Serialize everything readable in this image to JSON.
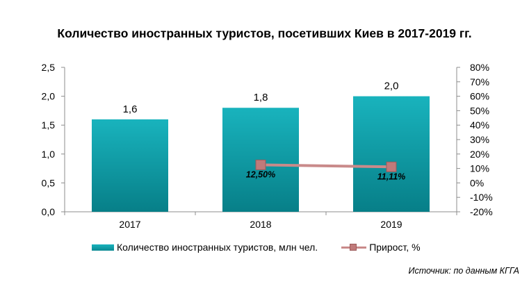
{
  "chart_data": {
    "type": "bar",
    "title": "Количество иностранных туристов, посетивших Киев в 2017-2019 гг.",
    "categories": [
      "2017",
      "2018",
      "2019"
    ],
    "series": [
      {
        "name": "Количество иностранных туристов, млн чел.",
        "type": "bar",
        "axis": "left",
        "values": [
          1.6,
          1.8,
          2.0
        ],
        "labels": [
          "1,6",
          "1,8",
          "2,0"
        ],
        "color": "#12a3ad"
      },
      {
        "name": "Прирост, %",
        "type": "line",
        "axis": "right",
        "values": [
          null,
          12.5,
          11.11
        ],
        "labels": [
          "",
          "12,50%",
          "11,11%"
        ],
        "color": "#c98a8a"
      }
    ],
    "y_left": {
      "ylim": [
        0,
        2.5
      ],
      "ticks": [
        "0,0",
        "0,5",
        "1,0",
        "1,5",
        "2,0",
        "2,5"
      ]
    },
    "y_right": {
      "ylim": [
        -20,
        80
      ],
      "ticks": [
        "-20%",
        "-10%",
        "0%",
        "10%",
        "20%",
        "30%",
        "40%",
        "50%",
        "60%",
        "70%",
        "80%"
      ]
    },
    "grid": false,
    "legend": "bottom",
    "source": "Источник: по данным КГГА"
  }
}
